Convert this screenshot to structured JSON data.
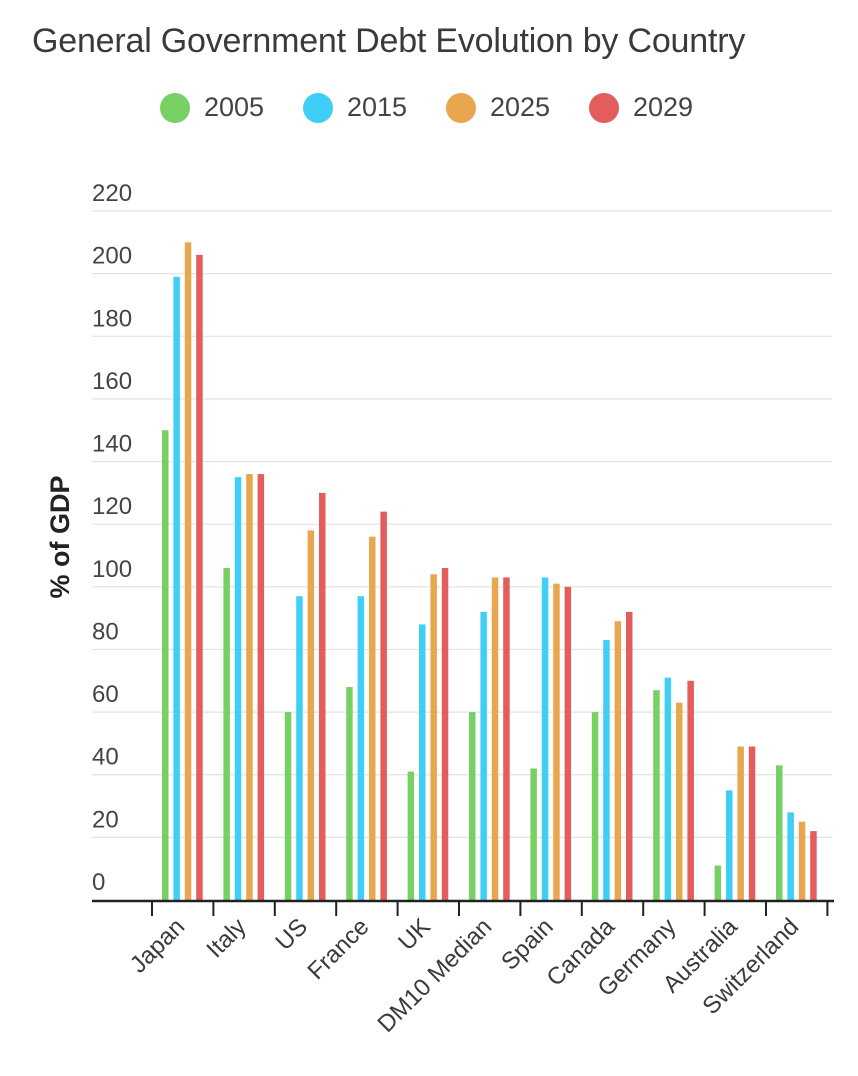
{
  "chart_data": {
    "type": "bar",
    "title": "General Government Debt Evolution by Country",
    "xlabel": "",
    "ylabel": "% of GDP",
    "ylim": [
      0,
      220
    ],
    "yticks": [
      0,
      20,
      40,
      60,
      80,
      100,
      120,
      140,
      160,
      180,
      200,
      220
    ],
    "grid": true,
    "legend_position": "top",
    "categories": [
      "Japan",
      "Italy",
      "US",
      "France",
      "UK",
      "DM10 Median",
      "Spain",
      "Canada",
      "Germany",
      "Australia",
      "Switzerland"
    ],
    "series": [
      {
        "name": "2005",
        "color": "#77d063",
        "values": [
          150,
          106,
          60,
          68,
          41,
          60,
          42,
          60,
          67,
          11,
          43
        ]
      },
      {
        "name": "2015",
        "color": "#3fcef5",
        "values": [
          199,
          135,
          97,
          97,
          88,
          92,
          103,
          83,
          71,
          35,
          28
        ]
      },
      {
        "name": "2025",
        "color": "#e8a64e",
        "values": [
          210,
          136,
          118,
          116,
          104,
          103,
          101,
          89,
          63,
          49,
          25
        ]
      },
      {
        "name": "2029",
        "color": "#e35d5d",
        "values": [
          206,
          136,
          130,
          124,
          106,
          103,
          100,
          92,
          70,
          49,
          22
        ]
      }
    ]
  }
}
